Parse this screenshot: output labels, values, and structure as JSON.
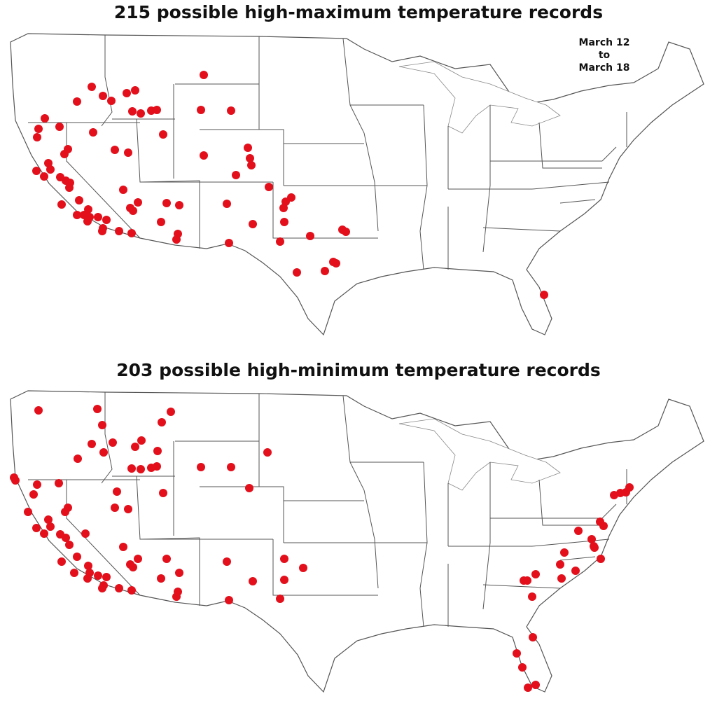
{
  "maps": [
    {
      "title": "215 possible high-maximum temperature records",
      "date_range": [
        "March 12",
        "to",
        "March 18"
      ]
    },
    {
      "title": "203 possible high-minimum temperature records"
    }
  ]
}
